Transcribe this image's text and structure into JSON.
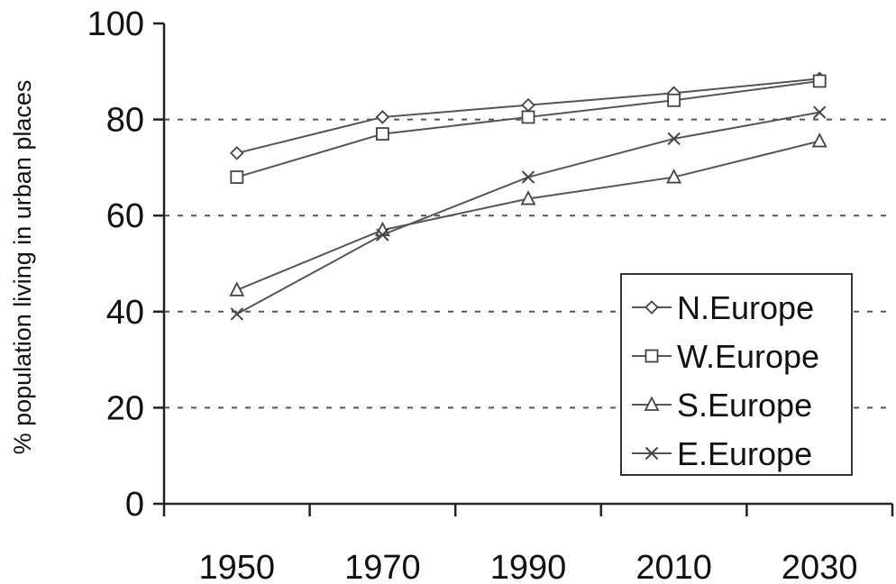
{
  "chart_data": {
    "type": "line",
    "title": "",
    "xlabel": "",
    "ylabel": "% population living in urban places",
    "x": [
      1950,
      1970,
      1990,
      2010,
      2030
    ],
    "x_tick_labels": [
      "1950",
      "1970",
      "1990",
      "2010",
      "2030"
    ],
    "xlim": [
      1940,
      2040
    ],
    "ylim": [
      0,
      100
    ],
    "y_ticks": [
      0,
      20,
      40,
      60,
      80,
      100
    ],
    "y_tick_labels": [
      "0",
      "20",
      "40",
      "60",
      "80",
      "100"
    ],
    "grid": "horizontal dotted at 20, 40, 60, 80",
    "legend_position": "bottom-right",
    "series": [
      {
        "name": "N.Europe",
        "marker": "diamond",
        "values": [
          73,
          80.5,
          83,
          85.5,
          88.5
        ]
      },
      {
        "name": "W.Europe",
        "marker": "square",
        "values": [
          68,
          77,
          80.5,
          84,
          88
        ]
      },
      {
        "name": "S.Europe",
        "marker": "triangle",
        "values": [
          44.5,
          57,
          63.5,
          68,
          75.5
        ]
      },
      {
        "name": "E.Europe",
        "marker": "x",
        "values": [
          39.5,
          56,
          68,
          76,
          81.5
        ]
      }
    ],
    "colors": {
      "line": "#555555",
      "marker": "#444444",
      "grid": "#555555"
    }
  }
}
